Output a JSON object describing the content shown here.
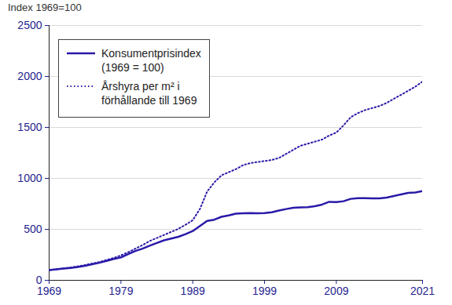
{
  "chart_data": {
    "type": "line",
    "y_label": "Index 1969=100",
    "x": [
      1969,
      1970,
      1971,
      1972,
      1973,
      1974,
      1975,
      1976,
      1977,
      1978,
      1979,
      1980,
      1981,
      1982,
      1983,
      1984,
      1985,
      1986,
      1987,
      1988,
      1989,
      1990,
      1991,
      1992,
      1993,
      1994,
      1995,
      1996,
      1997,
      1998,
      1999,
      2000,
      2001,
      2002,
      2003,
      2004,
      2005,
      2006,
      2007,
      2008,
      2009,
      2010,
      2011,
      2012,
      2013,
      2014,
      2015,
      2016,
      2017,
      2018,
      2019,
      2020,
      2021
    ],
    "series": [
      {
        "name": "Konsumentprisindex\n(1969 = 100)",
        "color": "#2a1aa8",
        "line_style": "solid",
        "values": [
          100,
          107,
          115,
          122,
          130,
          143,
          157,
          172,
          191,
          210,
          225,
          256,
          287,
          311,
          339,
          366,
          392,
          409,
          427,
          453,
          483,
          532,
          582,
          595,
          623,
          637,
          654,
          658,
          660,
          658,
          660,
          667,
          684,
          699,
          712,
          715,
          718,
          727,
          743,
          770,
          767,
          776,
          799,
          806,
          806,
          804,
          804,
          812,
          827,
          843,
          857,
          861,
          875
        ]
      },
      {
        "name": "Årshyra per m² i\nförhållande till 1969",
        "color": "#2a1aa8",
        "line_style": "dotted",
        "values": [
          100,
          108,
          117,
          126,
          137,
          150,
          165,
          180,
          200,
          220,
          245,
          275,
          310,
          345,
          385,
          415,
          445,
          475,
          505,
          545,
          590,
          700,
          870,
          960,
          1030,
          1060,
          1090,
          1130,
          1150,
          1160,
          1170,
          1180,
          1200,
          1240,
          1280,
          1320,
          1340,
          1360,
          1380,
          1420,
          1450,
          1520,
          1600,
          1640,
          1670,
          1690,
          1710,
          1740,
          1780,
          1820,
          1860,
          1900,
          1950
        ]
      }
    ],
    "xlim": [
      1969,
      2021
    ],
    "xticks": [
      1969,
      1979,
      1989,
      1999,
      2009,
      2021
    ],
    "ylim": [
      0,
      2500
    ],
    "yticks": [
      0,
      500,
      1000,
      1500,
      2000,
      2500
    ],
    "grid": true,
    "legend": "top-left"
  }
}
